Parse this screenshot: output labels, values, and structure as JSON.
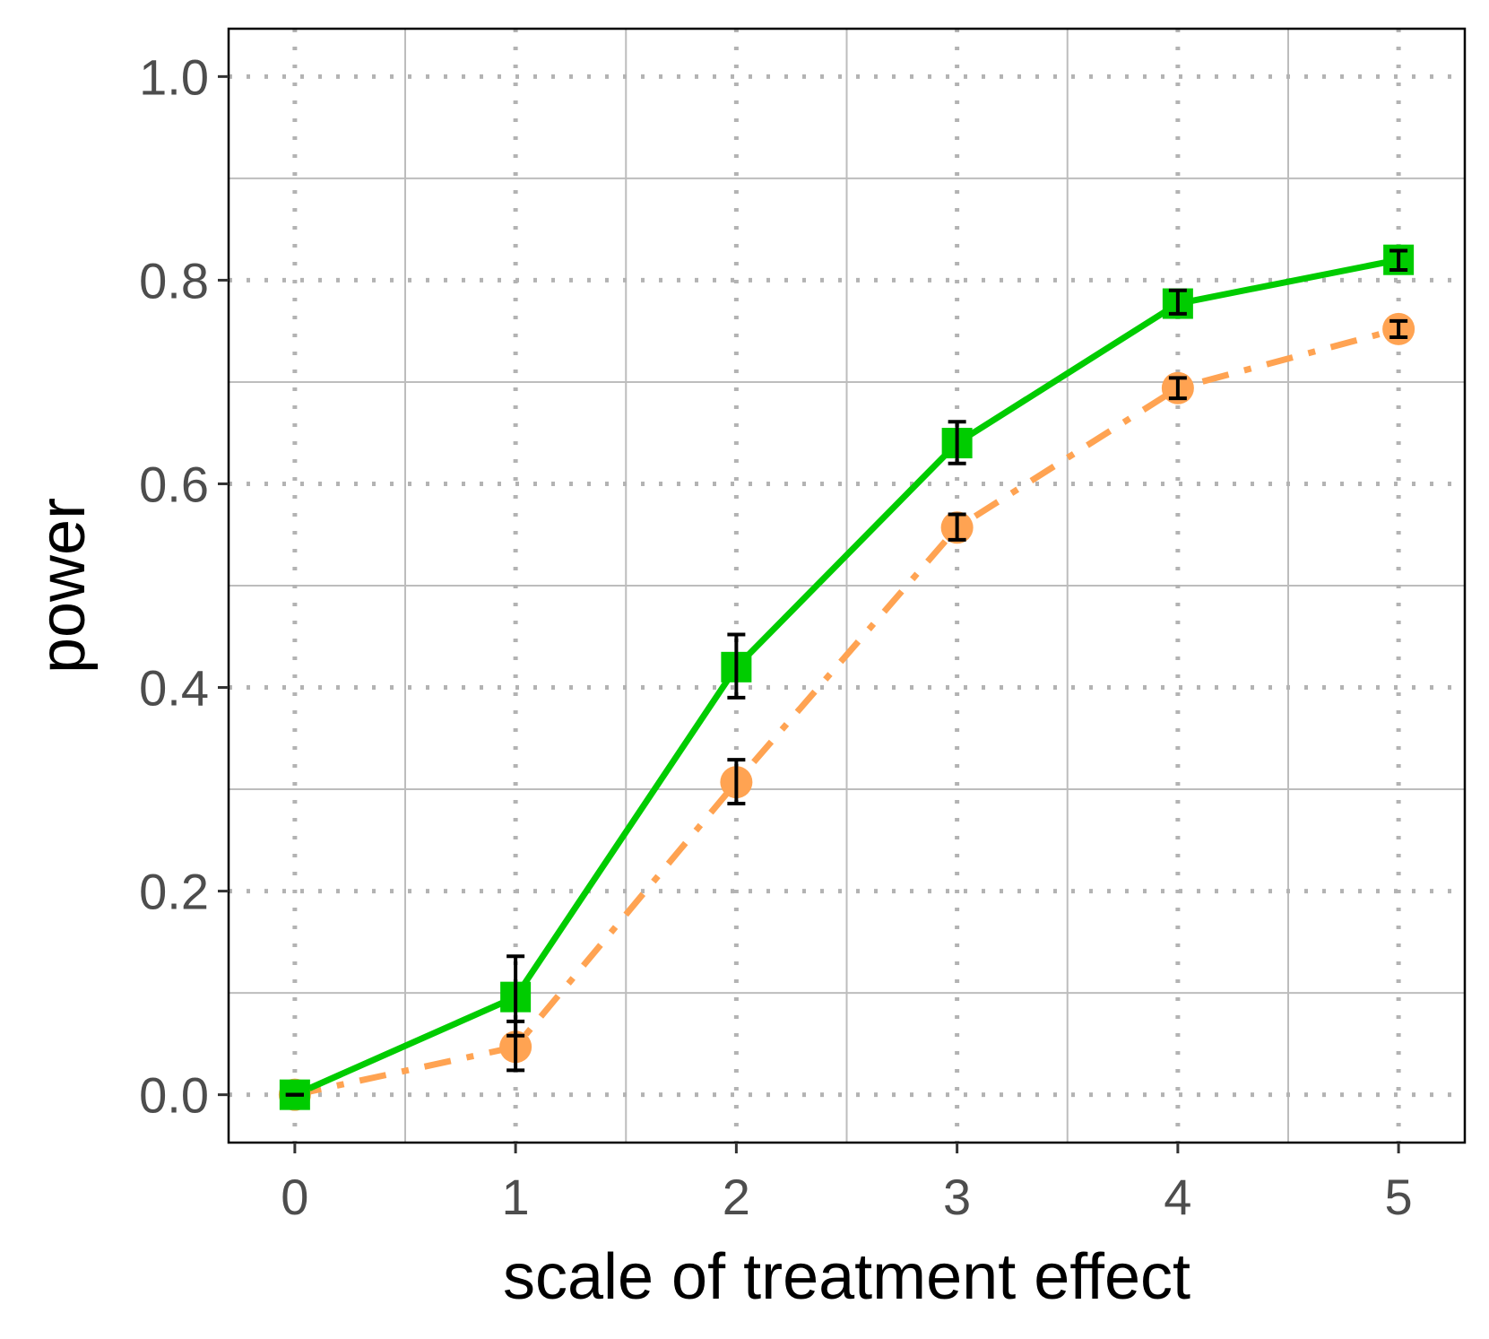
{
  "chart_data": {
    "type": "line",
    "title": "",
    "xlabel": "scale of treatment effect",
    "ylabel": "power",
    "x": [
      0,
      1,
      2,
      3,
      4,
      5
    ],
    "xlim": [
      -0.3,
      5.3
    ],
    "ylim": [
      -0.047,
      1.047
    ],
    "x_ticks": [
      0,
      1,
      2,
      3,
      4,
      5
    ],
    "x_tick_labels": [
      "0",
      "1",
      "2",
      "3",
      "4",
      "5"
    ],
    "y_ticks": [
      0.0,
      0.2,
      0.4,
      0.6,
      0.8,
      1.0
    ],
    "y_tick_labels": [
      "0.0",
      "0.2",
      "0.4",
      "0.6",
      "0.8",
      "1.0"
    ],
    "grid": true,
    "legend": "none",
    "series": [
      {
        "name": "green",
        "color": "#00cc00",
        "marker": "square",
        "line_style": "solid",
        "values": [
          0.0,
          0.096,
          0.42,
          0.64,
          0.777,
          0.82
        ],
        "error_low": [
          0.0,
          0.058,
          0.39,
          0.62,
          0.767,
          0.81
        ],
        "error_high": [
          0.0,
          0.136,
          0.452,
          0.661,
          0.79,
          0.829
        ]
      },
      {
        "name": "orange",
        "color": "#ffa352",
        "marker": "circle",
        "line_style": "dashdot",
        "values": [
          0.0,
          0.047,
          0.307,
          0.557,
          0.694,
          0.752
        ],
        "error_low": [
          0.0,
          0.024,
          0.286,
          0.545,
          0.684,
          0.744
        ],
        "error_high": [
          0.0,
          0.072,
          0.329,
          0.57,
          0.704,
          0.76
        ]
      }
    ]
  }
}
